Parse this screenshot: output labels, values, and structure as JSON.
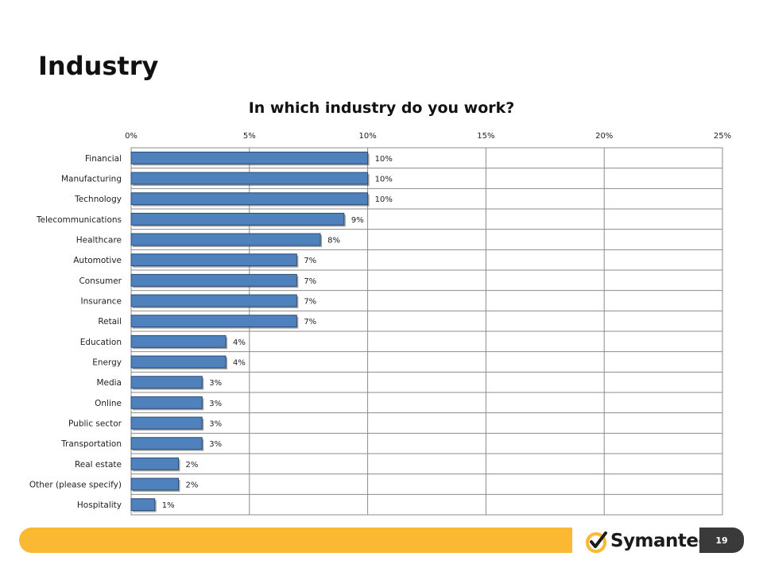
{
  "slide": {
    "title": "Industry",
    "page_number": "19",
    "logo_text": "Symantec",
    "logo_suffix": "."
  },
  "colors": {
    "bar_fill": "#4f81bd",
    "bar_stroke": "#2b4d78",
    "footer_bar": "#fbb832",
    "logo_yellow": "#fbb832",
    "page_badge": "#3a3a3a"
  },
  "chart_data": {
    "type": "bar",
    "orientation": "horizontal",
    "title": "In which industry do you work?",
    "xlabel": "",
    "ylabel": "",
    "xlim": [
      0,
      25
    ],
    "ticks": [
      "0%",
      "5%",
      "10%",
      "15%",
      "20%",
      "25%"
    ],
    "grid": true,
    "legend": "none",
    "categories": [
      "Financial",
      "Manufacturing",
      "Technology",
      "Telecommunications",
      "Healthcare",
      "Automotive",
      "Consumer",
      "Insurance",
      "Retail",
      "Education",
      "Energy",
      "Media",
      "Online",
      "Public sector",
      "Transportation",
      "Real estate",
      "Other (please specify)",
      "Hospitality"
    ],
    "values": [
      10,
      10,
      10,
      9,
      8,
      7,
      7,
      7,
      7,
      4,
      4,
      3,
      3,
      3,
      3,
      2,
      2,
      1
    ],
    "labels": [
      "10%",
      "10%",
      "10%",
      "9%",
      "8%",
      "7%",
      "7%",
      "7%",
      "7%",
      "4%",
      "4%",
      "3%",
      "3%",
      "3%",
      "3%",
      "2%",
      "2%",
      "1%"
    ]
  }
}
